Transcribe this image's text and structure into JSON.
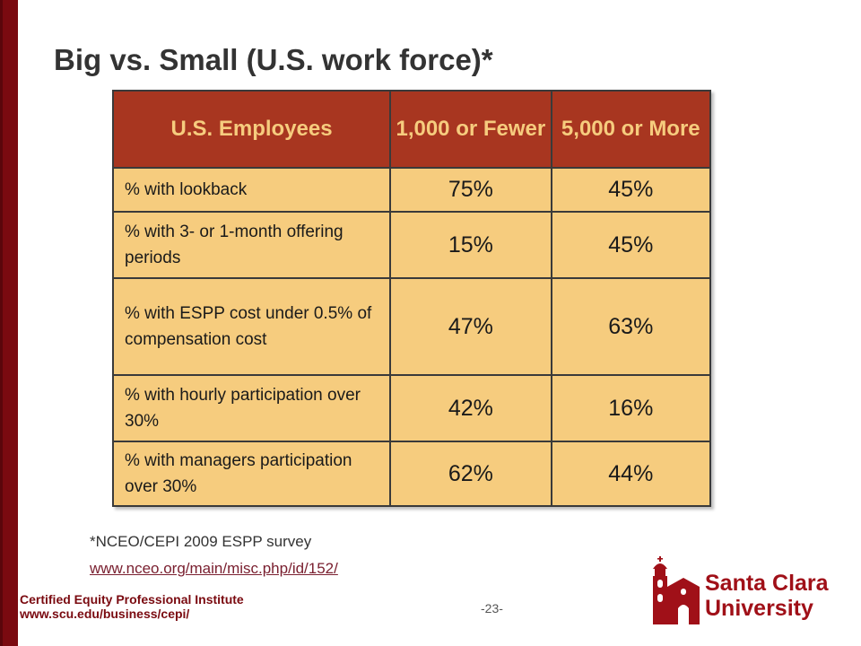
{
  "slide": {
    "title": "Big vs. Small (U.S. work force)*",
    "page_number": "-23-",
    "footnote": "*NCEO/CEPI 2009 ESPP survey",
    "source_link": "www.nceo.org/main/misc.php/id/152/",
    "footer": {
      "org_name": "Certified Equity Professional Institute",
      "org_url": "www.scu.edu/business/cepi/"
    },
    "logo": {
      "line1": "Santa Clara",
      "line2": "University",
      "icon": "mission-church-icon"
    },
    "colors": {
      "side_bar": "#7a0a10",
      "header_fill": "#a83620",
      "header_text": "#f6cc7e",
      "cell_fill": "#f6cc7e",
      "logo_red": "#a01018"
    }
  },
  "table": {
    "headers": [
      "U.S. Employees",
      "1,000 or Fewer",
      "5,000 or More"
    ],
    "rows": [
      {
        "label": "% with lookback",
        "small": "75%",
        "large": "45%"
      },
      {
        "label": "% with 3- or 1-month offering periods",
        "small": "15%",
        "large": "45%"
      },
      {
        "label": "% with ESPP cost under 0.5% of compensation cost",
        "small": "47%",
        "large": "63%"
      },
      {
        "label": "% with hourly participation over 30%",
        "small": "42%",
        "large": "16%"
      },
      {
        "label": "% with managers participation over 30%",
        "small": "62%",
        "large": "44%"
      }
    ]
  }
}
